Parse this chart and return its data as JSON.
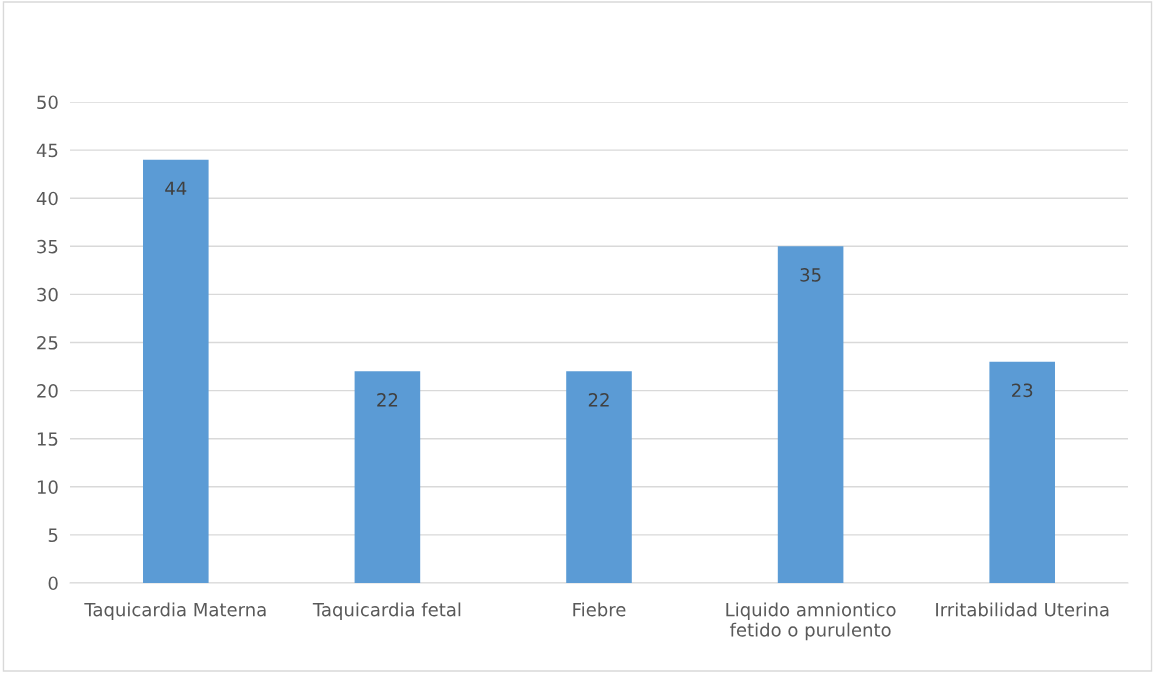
{
  "chart_data": {
    "type": "bar",
    "categories": [
      "Taquicardia Materna",
      "Taquicardia fetal",
      "Fiebre",
      "Liquido amniontico\nfetido o purulento",
      "Irritabilidad Uterina"
    ],
    "values": [
      44,
      22,
      22,
      35,
      23
    ],
    "color": "#5b9bd5",
    "ylim": [
      0,
      50
    ],
    "yticks": [
      0,
      5,
      10,
      15,
      20,
      25,
      30,
      35,
      40,
      45,
      50
    ],
    "grid": "y",
    "data_labels": true,
    "legend": false
  }
}
